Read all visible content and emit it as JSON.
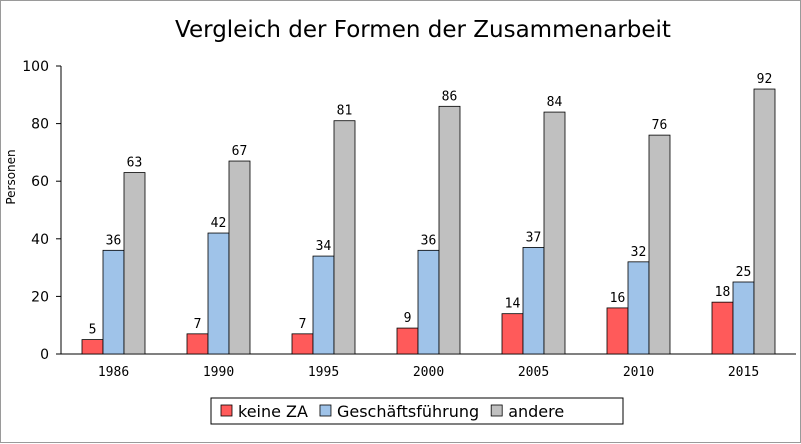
{
  "chart_data": {
    "type": "bar",
    "title": "Vergleich der Formen der Zusammenarbeit",
    "xlabel": "",
    "ylabel": "Personen",
    "ylim": [
      0,
      100
    ],
    "yticks": [
      "0",
      "20",
      "40",
      "60",
      "80",
      "100"
    ],
    "categories": [
      "1986",
      "1990",
      "1995",
      "2000",
      "2005",
      "2010",
      "2015"
    ],
    "series": [
      {
        "name": "keine ZA",
        "color": "#ff5a5a",
        "values": [
          5,
          7,
          7,
          9,
          14,
          16,
          18
        ]
      },
      {
        "name": "Geschäftsführung",
        "color": "#9fc3e9",
        "values": [
          36,
          42,
          34,
          36,
          37,
          32,
          25
        ]
      },
      {
        "name": "andere",
        "color": "#c0c0c0",
        "values": [
          63,
          67,
          81,
          86,
          84,
          76,
          92
        ]
      }
    ],
    "legend_position": "bottom",
    "grid": false
  }
}
